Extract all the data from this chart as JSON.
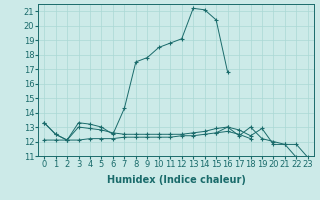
{
  "xlabel": "Humidex (Indice chaleur)",
  "background_color": "#cceae8",
  "line_color": "#1a6b6b",
  "grid_color": "#aad8d5",
  "xlim": [
    -0.5,
    23.5
  ],
  "ylim": [
    11,
    21.5
  ],
  "yticks": [
    11,
    12,
    13,
    14,
    15,
    16,
    17,
    18,
    19,
    20,
    21
  ],
  "xticks": [
    0,
    1,
    2,
    3,
    4,
    5,
    6,
    7,
    8,
    9,
    10,
    11,
    12,
    13,
    14,
    15,
    16,
    17,
    18,
    19,
    20,
    21,
    22,
    23
  ],
  "series": [
    [
      13.3,
      12.5,
      12.1,
      13.3,
      13.2,
      13.0,
      12.5,
      14.3,
      17.5,
      17.8,
      18.5,
      18.8,
      19.1,
      21.2,
      21.1,
      20.4,
      16.8,
      null,
      null,
      null,
      null,
      null,
      null,
      null
    ],
    [
      12.1,
      12.1,
      12.1,
      12.1,
      12.2,
      12.2,
      12.2,
      12.3,
      12.3,
      12.3,
      12.3,
      12.3,
      12.4,
      12.4,
      12.5,
      12.6,
      12.7,
      12.5,
      12.2,
      null,
      null,
      null,
      null,
      null
    ],
    [
      13.3,
      12.5,
      12.1,
      13.0,
      12.9,
      12.8,
      12.6,
      12.5,
      12.5,
      12.5,
      12.5,
      12.5,
      12.5,
      12.6,
      12.7,
      12.9,
      13.0,
      12.8,
      12.4,
      12.9,
      11.8,
      11.8,
      10.9,
      null
    ],
    [
      null,
      null,
      null,
      null,
      null,
      null,
      null,
      null,
      null,
      null,
      null,
      null,
      null,
      null,
      null,
      12.6,
      13.0,
      12.4,
      13.0,
      12.2,
      12.0,
      11.8,
      11.8,
      10.9
    ]
  ],
  "figsize": [
    3.2,
    2.0
  ],
  "dpi": 100,
  "font_size": 6.5
}
